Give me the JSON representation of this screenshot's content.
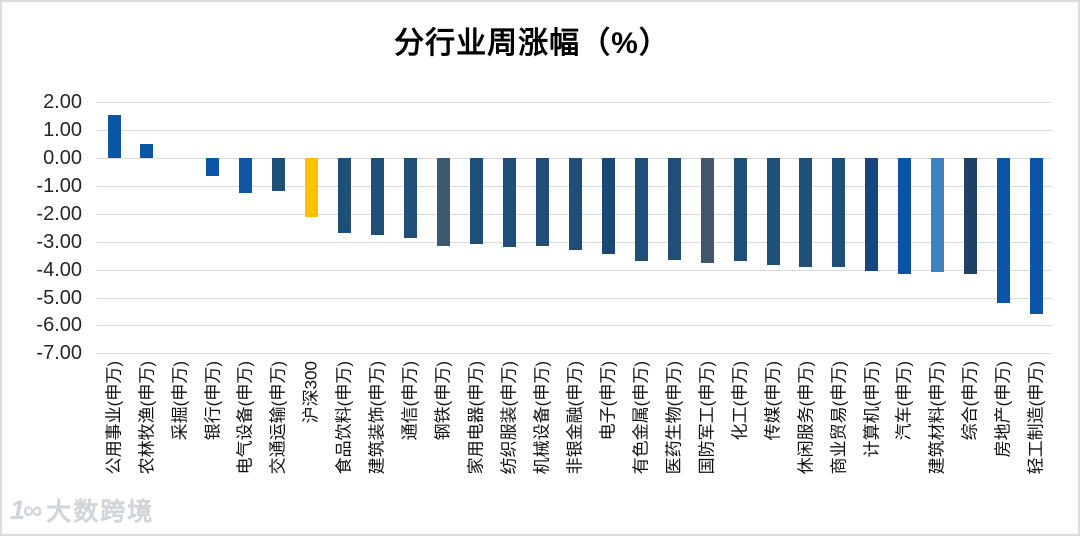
{
  "watermark": {
    "logo_glyph": "1∞",
    "text": "大数跨境"
  },
  "chart_data": {
    "type": "bar",
    "title": "分行业周涨幅（%）",
    "xlabel": "",
    "ylabel": "",
    "ylim": [
      -7,
      2
    ],
    "grid": true,
    "legend_position": "none",
    "yticks": [
      2,
      1,
      0,
      -1,
      -2,
      -3,
      -4,
      -5,
      -6,
      -7
    ],
    "ytick_labels": [
      "2.00",
      "1.00",
      "0.00",
      "-1.00",
      "-2.00",
      "-3.00",
      "-4.00",
      "-5.00",
      "-6.00",
      "-7.00"
    ],
    "highlight_category": "沪深300",
    "highlight_color": "#FFC000",
    "default_bar_color": "#1F4E79",
    "categories": [
      "公用事业(申万)",
      "农林牧渔(申万)",
      "采掘(申万)",
      "银行(申万)",
      "电气设备(申万)",
      "交通运输(申万)",
      "沪深300",
      "食品饮料(申万)",
      "建筑装饰(申万)",
      "通信(申万)",
      "钢铁(申万)",
      "家用电器(申万)",
      "纺织服装(申万)",
      "机械设备(申万)",
      "非银金融(申万)",
      "电子(申万)",
      "有色金属(申万)",
      "医药生物(申万)",
      "国防军工(申万)",
      "化工(申万)",
      "传媒(申万)",
      "休闲服务(申万)",
      "商业贸易(申万)",
      "计算机(申万)",
      "汽车(申万)",
      "建筑材料(申万)",
      "综合(申万)",
      "房地产(申万)",
      "轻工制造(申万)"
    ],
    "values": [
      1.55,
      0.5,
      0.0,
      -0.65,
      -1.25,
      -1.2,
      -2.1,
      -2.7,
      -2.75,
      -2.85,
      -3.15,
      -3.1,
      -3.2,
      -3.15,
      -3.3,
      -3.45,
      -3.7,
      -3.65,
      -3.75,
      -3.7,
      -3.85,
      -3.9,
      -3.9,
      -4.05,
      -4.15,
      -4.1,
      -4.15,
      -5.2,
      -5.6
    ],
    "colors": [
      "#0C54A6",
      "#0C54A6",
      "#1F4E79",
      "#0C54A6",
      "#1156A0",
      "#1F4E79",
      "#FFC000",
      "#1F4E79",
      "#1F4E79",
      "#1F4E79",
      "#3C5872",
      "#1F4E79",
      "#1F4E79",
      "#1F4E79",
      "#1F4E79",
      "#1A4876",
      "#1F4E79",
      "#1F4E79",
      "#44546A",
      "#1F4E79",
      "#1F4E79",
      "#1F4E79",
      "#1F4E79",
      "#17457E",
      "#0C54A6",
      "#3F80C1",
      "#1E4266",
      "#0C54A6",
      "#0C54A6"
    ]
  }
}
